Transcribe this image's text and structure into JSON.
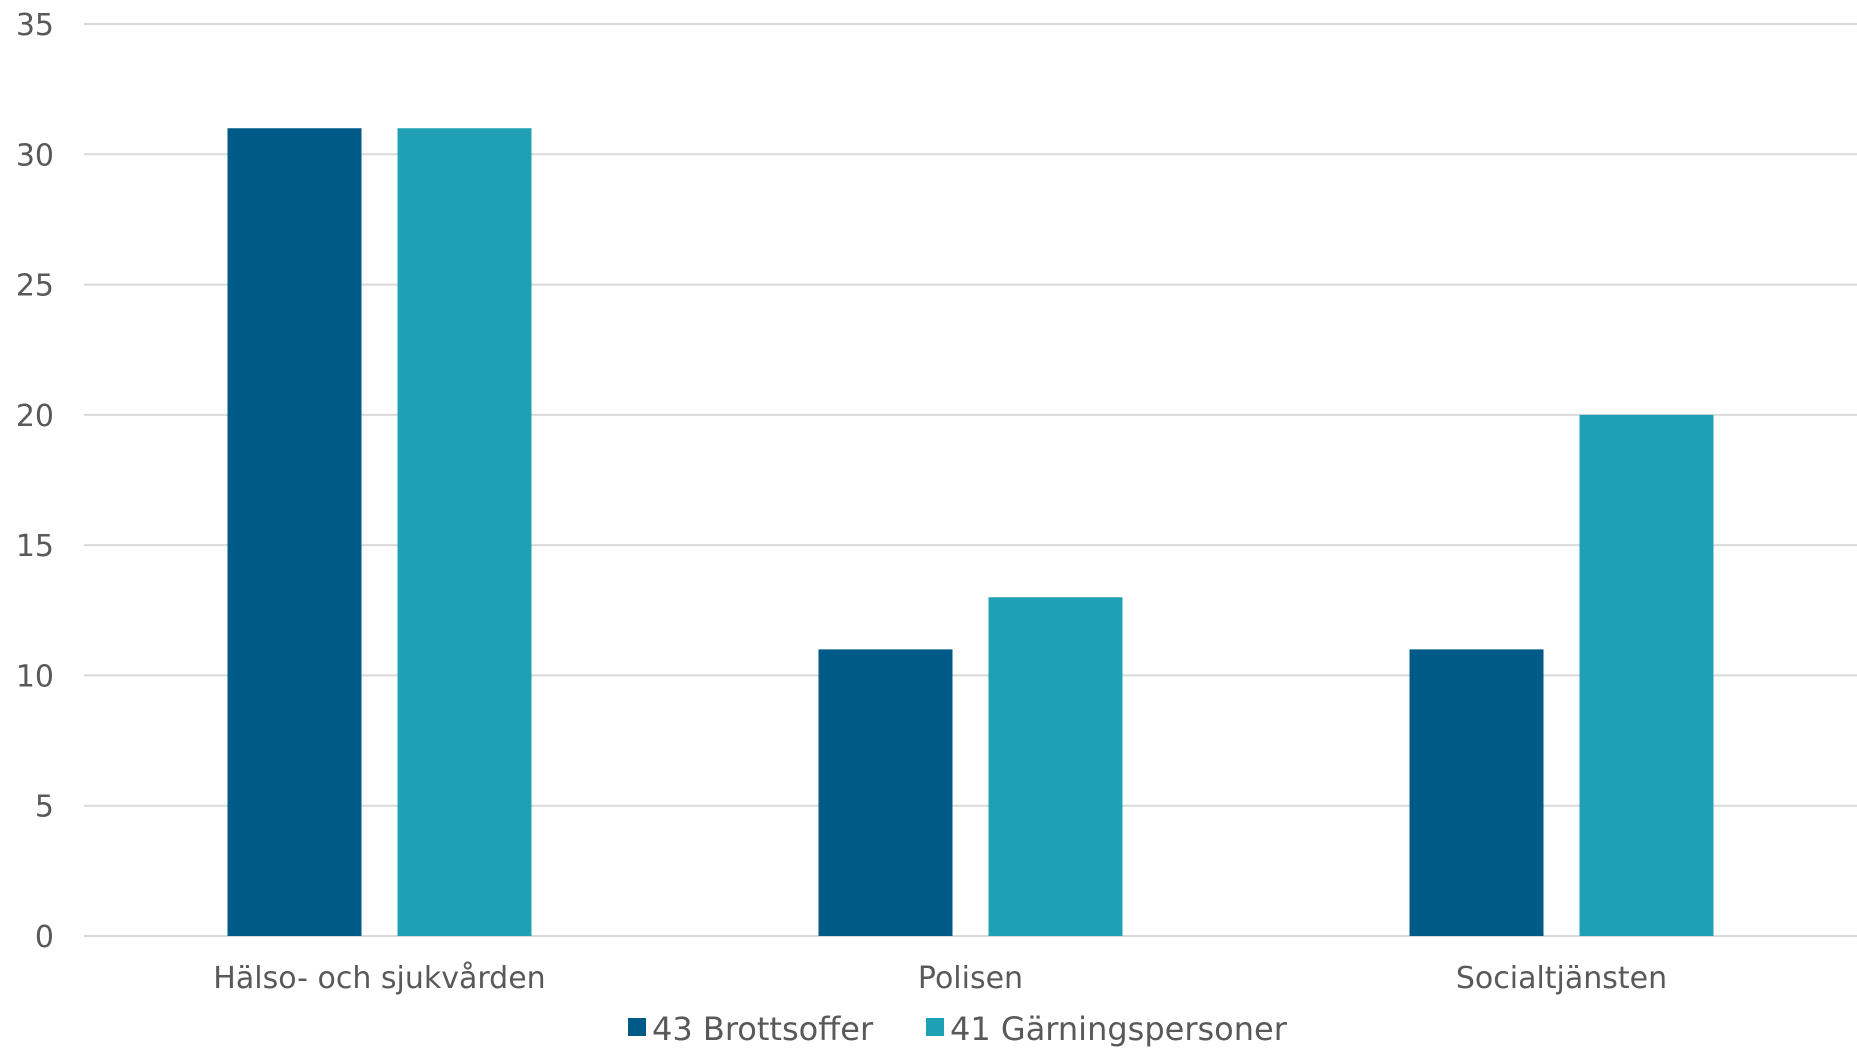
{
  "chart_data": {
    "type": "bar",
    "categories": [
      "Hälso- och sjukvården",
      "Polisen",
      "Socialtjänsten"
    ],
    "series": [
      {
        "name": "43 Brottsoffer",
        "values": [
          31,
          11,
          11
        ],
        "color": "#005a87"
      },
      {
        "name": "41 Gärningspersoner",
        "values": [
          31,
          13,
          20
        ],
        "color": "#1fa0b4"
      }
    ],
    "title": "",
    "xlabel": "",
    "ylabel": "",
    "ylim": [
      0,
      35
    ],
    "yticks": [
      "0",
      "5",
      "10",
      "15",
      "20",
      "25",
      "30",
      "35"
    ],
    "grid": true,
    "legend_position": "bottom",
    "gridline_color": "#d9d9d9"
  }
}
